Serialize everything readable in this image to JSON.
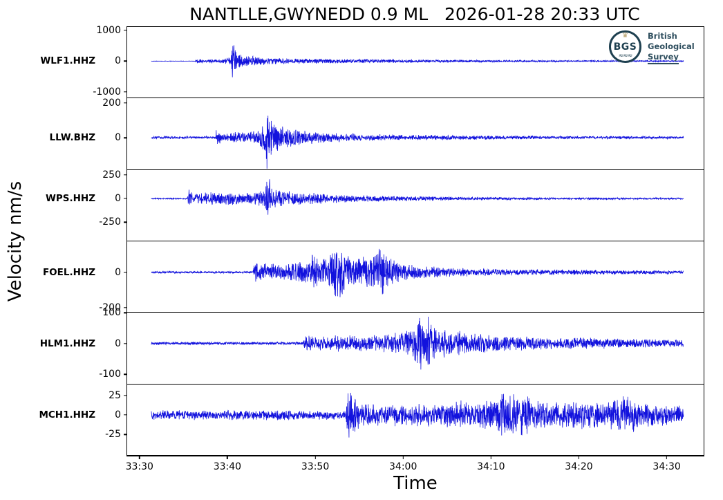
{
  "title": "NANTLLE,GWYNEDD 0.9 ML   2026-01-28 20:33 UTC",
  "xlabel": "Time",
  "ylabel": "Velocity nm/s",
  "logo": {
    "abbr": "BGS",
    "line1": "British",
    "line2": "Geological",
    "line3": "Survey",
    "crown_glyph": "♛",
    "waves_glyph": "≈≈≈",
    "dark_color": "#1e4050",
    "gold_color": "#b49e68",
    "text_color": "#2e4e5e"
  },
  "chart_data": {
    "type": "line",
    "title": "NANTLLE,GWYNEDD 0.9 ML   2026-01-28 20:33 UTC",
    "xlabel": "Time",
    "ylabel": "Velocity nm/s",
    "line_color": "#1212dd",
    "frame_color": "#000000",
    "x_units": "seconds after 20:33:30 UTC",
    "x_range": [
      -1.4,
      64.2
    ],
    "x_ticks": [
      {
        "t": 0,
        "label": "33:30"
      },
      {
        "t": 10,
        "label": "33:40"
      },
      {
        "t": 20,
        "label": "33:50"
      },
      {
        "t": 30,
        "label": "34:00"
      },
      {
        "t": 40,
        "label": "34:10"
      },
      {
        "t": 50,
        "label": "34:20"
      },
      {
        "t": 60,
        "label": "34:30"
      }
    ],
    "traces": [
      {
        "name": "WLF1.HHZ",
        "seed": 101,
        "ylim": [
          -1190,
          1110
        ],
        "yticks": [
          1000,
          0,
          -1000
        ],
        "t_start": 1.35,
        "t_end": 61.9,
        "envelope": [
          [
            1.35,
            8
          ],
          [
            6.3,
            8
          ],
          [
            6.5,
            95
          ],
          [
            7.3,
            60
          ],
          [
            7.8,
            30
          ],
          [
            8.1,
            95
          ],
          [
            8.7,
            50
          ],
          [
            9.3,
            65
          ],
          [
            10.0,
            110
          ],
          [
            10.4,
            160
          ],
          [
            10.62,
            1020
          ],
          [
            10.85,
            420
          ],
          [
            11.2,
            300
          ],
          [
            11.8,
            200
          ],
          [
            12.5,
            180
          ],
          [
            13.5,
            160
          ],
          [
            15,
            120
          ],
          [
            17,
            100
          ],
          [
            19,
            90
          ],
          [
            22,
            80
          ],
          [
            25,
            70
          ],
          [
            28,
            62
          ],
          [
            32,
            52
          ],
          [
            36,
            45
          ],
          [
            40,
            40
          ],
          [
            45,
            34
          ],
          [
            50,
            30
          ],
          [
            55,
            26
          ],
          [
            61.9,
            22
          ]
        ]
      },
      {
        "name": "LLW.BHZ",
        "seed": 202,
        "ylim": [
          -180,
          225
        ],
        "yticks": [
          200,
          0
        ],
        "t_start": 1.35,
        "t_end": 61.9,
        "envelope": [
          [
            1.35,
            8
          ],
          [
            8.6,
            8
          ],
          [
            8.8,
            60
          ],
          [
            9.3,
            28
          ],
          [
            10,
            22
          ],
          [
            11,
            35
          ],
          [
            12,
            30
          ],
          [
            13,
            42
          ],
          [
            13.9,
            65
          ],
          [
            14.3,
            110
          ],
          [
            14.55,
            200
          ],
          [
            14.85,
            130
          ],
          [
            15.4,
            95
          ],
          [
            16.2,
            75
          ],
          [
            17,
            60
          ],
          [
            18,
            50
          ],
          [
            19.5,
            40
          ],
          [
            21,
            33
          ],
          [
            23,
            27
          ],
          [
            25,
            23
          ],
          [
            28,
            19
          ],
          [
            31,
            16
          ],
          [
            35,
            14
          ],
          [
            40,
            12
          ],
          [
            46,
            10
          ],
          [
            53,
            9
          ],
          [
            61.9,
            8
          ]
        ]
      },
      {
        "name": "WPS.HHZ",
        "seed": 303,
        "ylim": [
          -445,
          300
        ],
        "yticks": [
          250,
          0,
          -250
        ],
        "t_start": 1.35,
        "t_end": 61.9,
        "envelope": [
          [
            1.35,
            7
          ],
          [
            5.45,
            7
          ],
          [
            5.6,
            120
          ],
          [
            6.1,
            50
          ],
          [
            7,
            60
          ],
          [
            8,
            78
          ],
          [
            9,
            62
          ],
          [
            10,
            70
          ],
          [
            11,
            62
          ],
          [
            12,
            58
          ],
          [
            13,
            68
          ],
          [
            14,
            95
          ],
          [
            14.45,
            210
          ],
          [
            14.62,
            335
          ],
          [
            14.9,
            160
          ],
          [
            15.6,
            105
          ],
          [
            16.5,
            88
          ],
          [
            18,
            72
          ],
          [
            20,
            60
          ],
          [
            22,
            50
          ],
          [
            25,
            40
          ],
          [
            28,
            32
          ],
          [
            32,
            25
          ],
          [
            36,
            20
          ],
          [
            41,
            16
          ],
          [
            47,
            13
          ],
          [
            54,
            11
          ],
          [
            61.9,
            9
          ]
        ]
      },
      {
        "name": "FOEL.HHZ",
        "seed": 404,
        "ylim": [
          -225,
          175
        ],
        "yticks": [
          0,
          -200
        ],
        "t_start": 1.35,
        "t_end": 61.9,
        "envelope": [
          [
            1.35,
            6
          ],
          [
            12.9,
            6
          ],
          [
            13.1,
            62
          ],
          [
            13.8,
            52
          ],
          [
            15,
            56
          ],
          [
            16,
            48
          ],
          [
            17,
            56
          ],
          [
            18,
            62
          ],
          [
            19,
            72
          ],
          [
            19.8,
            115
          ],
          [
            20.5,
            75
          ],
          [
            21.5,
            95
          ],
          [
            22.4,
            165
          ],
          [
            22.9,
            205
          ],
          [
            23.4,
            130
          ],
          [
            24.3,
            85
          ],
          [
            25.3,
            95
          ],
          [
            26.3,
            82
          ],
          [
            27.4,
            165
          ],
          [
            28,
            105
          ],
          [
            29,
            75
          ],
          [
            30,
            50
          ],
          [
            32,
            38
          ],
          [
            35,
            28
          ],
          [
            38,
            23
          ],
          [
            42,
            19
          ],
          [
            47,
            16
          ],
          [
            53,
            13
          ],
          [
            61.9,
            11
          ]
        ]
      },
      {
        "name": "HLM1.HHZ",
        "seed": 505,
        "ylim": [
          -130,
          100
        ],
        "yticks": [
          100,
          0,
          -100
        ],
        "t_start": 1.35,
        "t_end": 61.9,
        "envelope": [
          [
            1.35,
            5
          ],
          [
            18.6,
            5
          ],
          [
            18.85,
            32
          ],
          [
            19.6,
            27
          ],
          [
            21,
            25
          ],
          [
            23,
            29
          ],
          [
            25,
            27
          ],
          [
            27,
            31
          ],
          [
            29,
            36
          ],
          [
            30.5,
            46
          ],
          [
            31.5,
            62
          ],
          [
            31.9,
            96
          ],
          [
            32.4,
            58
          ],
          [
            32.9,
            99
          ],
          [
            33.4,
            58
          ],
          [
            34.5,
            47
          ],
          [
            36,
            42
          ],
          [
            37.5,
            37
          ],
          [
            39,
            32
          ],
          [
            41,
            27
          ],
          [
            44,
            23
          ],
          [
            48,
            20
          ],
          [
            53,
            18
          ],
          [
            58,
            14
          ],
          [
            61.9,
            12
          ]
        ]
      },
      {
        "name": "MCH1.HHZ",
        "seed": 606,
        "ylim": [
          -51,
          39
        ],
        "yticks": [
          25,
          0,
          -25
        ],
        "t_start": 1.35,
        "t_end": 61.9,
        "envelope": [
          [
            1.35,
            6
          ],
          [
            4,
            7
          ],
          [
            7,
            6
          ],
          [
            10,
            7
          ],
          [
            13,
            6
          ],
          [
            16,
            7
          ],
          [
            19,
            6
          ],
          [
            22,
            6
          ],
          [
            23.5,
            6
          ],
          [
            23.75,
            40
          ],
          [
            24.2,
            32
          ],
          [
            24.8,
            20
          ],
          [
            25.5,
            15
          ],
          [
            26.5,
            17
          ],
          [
            27.5,
            13
          ],
          [
            29,
            15
          ],
          [
            30.5,
            13
          ],
          [
            32,
            16
          ],
          [
            33.5,
            14
          ],
          [
            35,
            16
          ],
          [
            36.5,
            20
          ],
          [
            38,
            16
          ],
          [
            39.5,
            19
          ],
          [
            41,
            26
          ],
          [
            42,
            34
          ],
          [
            43,
            26
          ],
          [
            44,
            31
          ],
          [
            45,
            22
          ],
          [
            46.5,
            19
          ],
          [
            48,
            17
          ],
          [
            50,
            20
          ],
          [
            52,
            16
          ],
          [
            54,
            21
          ],
          [
            55.8,
            27
          ],
          [
            57,
            17
          ],
          [
            58.5,
            15
          ],
          [
            60,
            16
          ],
          [
            61.9,
            13
          ]
        ]
      }
    ]
  }
}
